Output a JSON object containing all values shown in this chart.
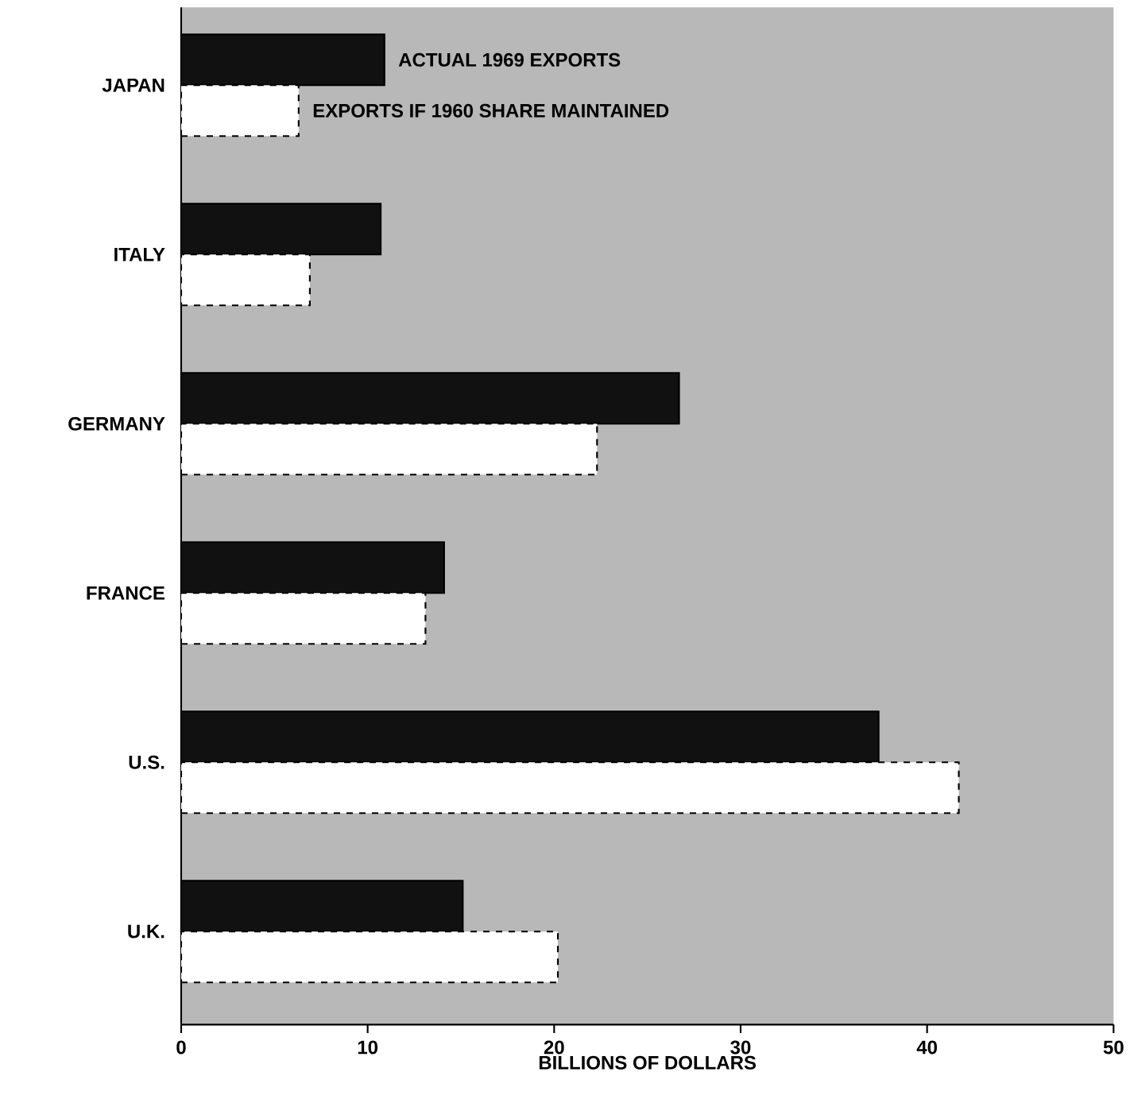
{
  "chart_data": {
    "type": "bar",
    "orientation": "horizontal",
    "xlabel": "BILLIONS OF DOLLARS",
    "categories": [
      "JAPAN",
      "ITALY",
      "GERMANY",
      "FRANCE",
      "U.S.",
      "U.K."
    ],
    "series": [
      {
        "name": "ACTUAL 1969 EXPORTS",
        "color": "#111111",
        "values": [
          10.9,
          10.7,
          26.7,
          14.1,
          37.4,
          15.1
        ]
      },
      {
        "name": "EXPORTS IF 1960 SHARE MAINTAINED",
        "color": "#ffffff",
        "line_style": "dashed",
        "values": [
          6.3,
          6.9,
          22.3,
          13.1,
          41.7,
          20.2
        ]
      }
    ],
    "xlim": [
      0,
      50
    ],
    "xticks": [
      0,
      10,
      20,
      30,
      40,
      50
    ]
  }
}
